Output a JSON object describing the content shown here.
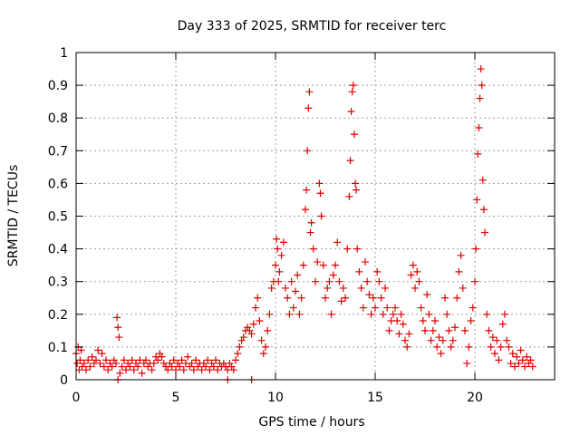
{
  "chart_data": {
    "type": "scatter",
    "title": "Day 333 of 2025, SRMTID for receiver terc",
    "xlabel": "GPS time / hours",
    "ylabel": "SRMTID / TECUs",
    "xlim": [
      0,
      24
    ],
    "ylim": [
      0,
      1
    ],
    "xticks": [
      "0",
      "5",
      "10",
      "15",
      "20"
    ],
    "yticks": [
      "0",
      "0.1",
      "0.2",
      "0.3",
      "0.4",
      "0.5",
      "0.6",
      "0.7",
      "0.8",
      "0.9",
      "1"
    ],
    "grid": true,
    "marker": "+",
    "color": "#e00000",
    "series": [
      {
        "name": "SRMTID",
        "points": [
          [
            0.0,
            0.08
          ],
          [
            0.05,
            0.05
          ],
          [
            0.1,
            0.1
          ],
          [
            0.15,
            0.03
          ],
          [
            0.2,
            0.06
          ],
          [
            0.25,
            0.09
          ],
          [
            0.3,
            0.04
          ],
          [
            0.4,
            0.05
          ],
          [
            0.5,
            0.03
          ],
          [
            0.6,
            0.06
          ],
          [
            0.7,
            0.04
          ],
          [
            0.8,
            0.07
          ],
          [
            0.9,
            0.05
          ],
          [
            1.0,
            0.06
          ],
          [
            1.1,
            0.09
          ],
          [
            1.2,
            0.05
          ],
          [
            1.3,
            0.08
          ],
          [
            1.4,
            0.04
          ],
          [
            1.5,
            0.06
          ],
          [
            1.6,
            0.03
          ],
          [
            1.7,
            0.05
          ],
          [
            1.8,
            0.04
          ],
          [
            1.9,
            0.06
          ],
          [
            2.0,
            0.05
          ],
          [
            2.05,
            0.19
          ],
          [
            2.1,
            0.16
          ],
          [
            2.15,
            0.13
          ],
          [
            2.2,
            0.02
          ],
          [
            2.3,
            0.04
          ],
          [
            2.4,
            0.06
          ],
          [
            2.5,
            0.03
          ],
          [
            2.6,
            0.05
          ],
          [
            2.7,
            0.04
          ],
          [
            2.8,
            0.06
          ],
          [
            2.9,
            0.03
          ],
          [
            3.0,
            0.05
          ],
          [
            3.1,
            0.04
          ],
          [
            3.2,
            0.06
          ],
          [
            3.3,
            0.02
          ],
          [
            3.4,
            0.05
          ],
          [
            3.5,
            0.06
          ],
          [
            3.6,
            0.04
          ],
          [
            3.7,
            0.05
          ],
          [
            3.8,
            0.03
          ],
          [
            3.9,
            0.05
          ],
          [
            4.0,
            0.07
          ],
          [
            4.1,
            0.06
          ],
          [
            4.2,
            0.08
          ],
          [
            4.3,
            0.07
          ],
          [
            4.4,
            0.05
          ],
          [
            4.5,
            0.04
          ],
          [
            4.6,
            0.03
          ],
          [
            4.7,
            0.05
          ],
          [
            4.8,
            0.04
          ],
          [
            4.9,
            0.06
          ],
          [
            5.0,
            0.03
          ],
          [
            5.1,
            0.05
          ],
          [
            5.2,
            0.04
          ],
          [
            5.3,
            0.06
          ],
          [
            5.4,
            0.03
          ],
          [
            5.5,
            0.05
          ],
          [
            5.6,
            0.07
          ],
          [
            5.7,
            0.04
          ],
          [
            5.8,
            0.05
          ],
          [
            5.9,
            0.03
          ],
          [
            6.0,
            0.06
          ],
          [
            6.1,
            0.04
          ],
          [
            6.2,
            0.05
          ],
          [
            6.3,
            0.03
          ],
          [
            6.4,
            0.05
          ],
          [
            6.5,
            0.04
          ],
          [
            6.6,
            0.06
          ],
          [
            6.7,
            0.03
          ],
          [
            6.8,
            0.05
          ],
          [
            6.9,
            0.04
          ],
          [
            7.0,
            0.06
          ],
          [
            7.1,
            0.03
          ],
          [
            7.2,
            0.05
          ],
          [
            7.3,
            0.04
          ],
          [
            7.4,
            0.05
          ],
          [
            7.5,
            0.04
          ],
          [
            7.6,
            0.03
          ],
          [
            7.7,
            0.05
          ],
          [
            7.8,
            0.04
          ],
          [
            7.9,
            0.03
          ],
          [
            8.0,
            0.06
          ],
          [
            8.1,
            0.08
          ],
          [
            8.2,
            0.1
          ],
          [
            8.3,
            0.12
          ],
          [
            8.4,
            0.13
          ],
          [
            8.5,
            0.15
          ],
          [
            8.6,
            0.16
          ],
          [
            8.7,
            0.15
          ],
          [
            8.8,
            0.14
          ],
          [
            8.9,
            0.17
          ],
          [
            9.0,
            0.22
          ],
          [
            9.1,
            0.25
          ],
          [
            9.2,
            0.18
          ],
          [
            9.3,
            0.12
          ],
          [
            9.4,
            0.08
          ],
          [
            9.5,
            0.1
          ],
          [
            9.6,
            0.15
          ],
          [
            9.7,
            0.2
          ],
          [
            9.8,
            0.28
          ],
          [
            9.9,
            0.3
          ],
          [
            10.0,
            0.35
          ],
          [
            10.05,
            0.43
          ],
          [
            10.1,
            0.4
          ],
          [
            10.15,
            0.3
          ],
          [
            10.2,
            0.33
          ],
          [
            10.3,
            0.38
          ],
          [
            10.4,
            0.42
          ],
          [
            10.5,
            0.28
          ],
          [
            10.6,
            0.25
          ],
          [
            10.7,
            0.2
          ],
          [
            10.8,
            0.3
          ],
          [
            10.9,
            0.22
          ],
          [
            11.0,
            0.27
          ],
          [
            11.1,
            0.32
          ],
          [
            11.2,
            0.2
          ],
          [
            11.3,
            0.25
          ],
          [
            11.4,
            0.35
          ],
          [
            11.5,
            0.52
          ],
          [
            11.55,
            0.58
          ],
          [
            11.6,
            0.7
          ],
          [
            11.65,
            0.83
          ],
          [
            11.7,
            0.88
          ],
          [
            11.75,
            0.45
          ],
          [
            11.8,
            0.48
          ],
          [
            11.9,
            0.4
          ],
          [
            12.0,
            0.3
          ],
          [
            12.1,
            0.36
          ],
          [
            12.2,
            0.6
          ],
          [
            12.25,
            0.57
          ],
          [
            12.3,
            0.5
          ],
          [
            12.4,
            0.35
          ],
          [
            12.5,
            0.25
          ],
          [
            12.6,
            0.28
          ],
          [
            12.7,
            0.3
          ],
          [
            12.8,
            0.2
          ],
          [
            12.9,
            0.32
          ],
          [
            13.0,
            0.35
          ],
          [
            13.1,
            0.42
          ],
          [
            13.2,
            0.3
          ],
          [
            13.3,
            0.24
          ],
          [
            13.4,
            0.28
          ],
          [
            13.5,
            0.25
          ],
          [
            13.6,
            0.4
          ],
          [
            13.7,
            0.56
          ],
          [
            13.75,
            0.67
          ],
          [
            13.8,
            0.82
          ],
          [
            13.85,
            0.88
          ],
          [
            13.9,
            0.9
          ],
          [
            13.95,
            0.75
          ],
          [
            14.0,
            0.6
          ],
          [
            14.05,
            0.58
          ],
          [
            14.1,
            0.4
          ],
          [
            14.2,
            0.33
          ],
          [
            14.3,
            0.28
          ],
          [
            14.4,
            0.22
          ],
          [
            14.5,
            0.36
          ],
          [
            14.6,
            0.3
          ],
          [
            14.7,
            0.26
          ],
          [
            14.8,
            0.2
          ],
          [
            14.9,
            0.25
          ],
          [
            15.0,
            0.22
          ],
          [
            15.1,
            0.33
          ],
          [
            15.2,
            0.3
          ],
          [
            15.3,
            0.25
          ],
          [
            15.4,
            0.2
          ],
          [
            15.5,
            0.28
          ],
          [
            15.6,
            0.22
          ],
          [
            15.7,
            0.15
          ],
          [
            15.8,
            0.18
          ],
          [
            15.9,
            0.2
          ],
          [
            16.0,
            0.22
          ],
          [
            16.1,
            0.18
          ],
          [
            16.2,
            0.14
          ],
          [
            16.3,
            0.2
          ],
          [
            16.4,
            0.17
          ],
          [
            16.5,
            0.12
          ],
          [
            16.6,
            0.1
          ],
          [
            16.7,
            0.14
          ],
          [
            16.8,
            0.32
          ],
          [
            16.9,
            0.35
          ],
          [
            17.0,
            0.28
          ],
          [
            17.1,
            0.33
          ],
          [
            17.2,
            0.3
          ],
          [
            17.3,
            0.22
          ],
          [
            17.4,
            0.18
          ],
          [
            17.5,
            0.15
          ],
          [
            17.6,
            0.26
          ],
          [
            17.7,
            0.2
          ],
          [
            17.8,
            0.12
          ],
          [
            17.9,
            0.15
          ],
          [
            18.0,
            0.18
          ],
          [
            18.1,
            0.1
          ],
          [
            18.2,
            0.13
          ],
          [
            18.3,
            0.08
          ],
          [
            18.4,
            0.12
          ],
          [
            18.5,
            0.25
          ],
          [
            18.6,
            0.2
          ],
          [
            18.7,
            0.15
          ],
          [
            18.8,
            0.1
          ],
          [
            18.9,
            0.12
          ],
          [
            19.0,
            0.16
          ],
          [
            19.1,
            0.25
          ],
          [
            19.2,
            0.33
          ],
          [
            19.3,
            0.38
          ],
          [
            19.4,
            0.28
          ],
          [
            19.5,
            0.15
          ],
          [
            19.6,
            0.05
          ],
          [
            19.7,
            0.1
          ],
          [
            19.8,
            0.18
          ],
          [
            19.9,
            0.22
          ],
          [
            20.0,
            0.3
          ],
          [
            20.05,
            0.4
          ],
          [
            20.1,
            0.55
          ],
          [
            20.15,
            0.69
          ],
          [
            20.2,
            0.77
          ],
          [
            20.25,
            0.86
          ],
          [
            20.3,
            0.95
          ],
          [
            20.35,
            0.9
          ],
          [
            20.4,
            0.61
          ],
          [
            20.45,
            0.52
          ],
          [
            20.5,
            0.45
          ],
          [
            20.6,
            0.2
          ],
          [
            20.7,
            0.15
          ],
          [
            20.8,
            0.1
          ],
          [
            20.9,
            0.13
          ],
          [
            21.0,
            0.08
          ],
          [
            21.1,
            0.12
          ],
          [
            21.2,
            0.06
          ],
          [
            21.3,
            0.1
          ],
          [
            21.4,
            0.17
          ],
          [
            21.5,
            0.2
          ],
          [
            21.6,
            0.12
          ],
          [
            21.7,
            0.1
          ],
          [
            21.8,
            0.05
          ],
          [
            21.9,
            0.08
          ],
          [
            22.0,
            0.04
          ],
          [
            22.1,
            0.07
          ],
          [
            22.2,
            0.05
          ],
          [
            22.3,
            0.09
          ],
          [
            22.4,
            0.06
          ],
          [
            22.5,
            0.04
          ],
          [
            22.6,
            0.07
          ],
          [
            22.7,
            0.05
          ],
          [
            22.8,
            0.06
          ],
          [
            22.9,
            0.04
          ],
          [
            2.1,
            0.0
          ],
          [
            7.6,
            0.0
          ],
          [
            8.8,
            0.0
          ]
        ]
      }
    ]
  }
}
